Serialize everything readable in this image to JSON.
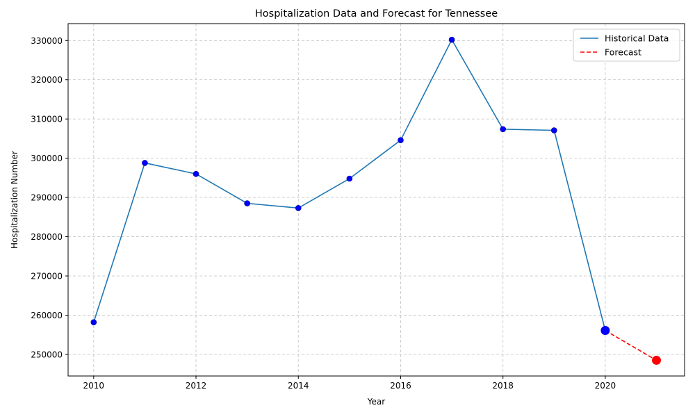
{
  "chart_data": {
    "type": "line",
    "title": "Hospitalization Data and Forecast for Tennessee",
    "xlabel": "Year",
    "ylabel": "Hospitalization Number",
    "xlim": [
      2009.5,
      2021.55
    ],
    "ylim": [
      244500,
      334300
    ],
    "x_ticks": [
      2010,
      2012,
      2014,
      2016,
      2018,
      2020
    ],
    "y_ticks": [
      250000,
      260000,
      270000,
      280000,
      290000,
      300000,
      310000,
      320000,
      330000
    ],
    "grid": true,
    "legend_position": "top-right",
    "series": [
      {
        "name": "Historical Data",
        "style": "solid",
        "color": "#1f77b4",
        "marker_color": "#0000ff",
        "x": [
          2010,
          2011,
          2012,
          2013,
          2014,
          2015,
          2016,
          2017,
          2018,
          2019,
          2020
        ],
        "y": [
          258200,
          298800,
          296000,
          288500,
          287300,
          294800,
          304600,
          330200,
          307400,
          307100,
          256100
        ]
      },
      {
        "name": "Forecast",
        "style": "dashed",
        "color": "#ff0000",
        "marker_color": "#ff0000",
        "x": [
          2020,
          2021
        ],
        "y": [
          256100,
          248500
        ]
      }
    ],
    "highlight_points": [
      {
        "x": 2020,
        "y": 256100,
        "color": "#0000ff"
      },
      {
        "x": 2021,
        "y": 248500,
        "color": "#ff0000"
      }
    ]
  }
}
